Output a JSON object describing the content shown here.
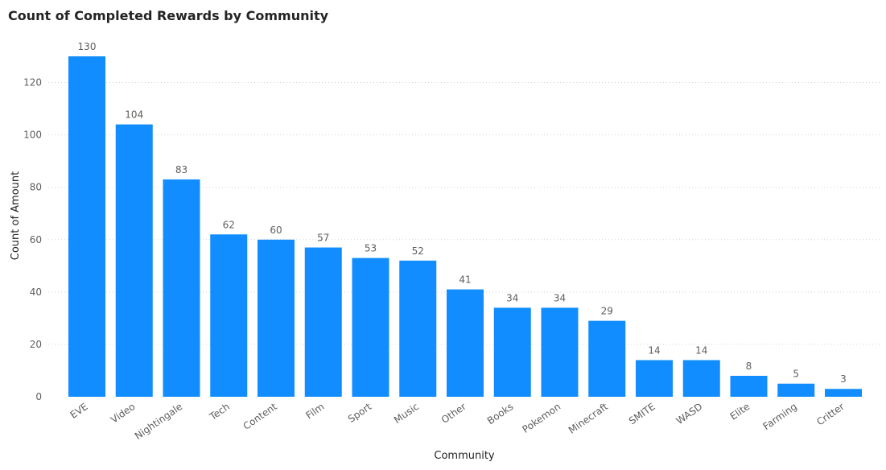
{
  "chart_data": {
    "type": "bar",
    "title": "Count of Completed Rewards by Community",
    "xlabel": "Community",
    "ylabel": "Count of Amount",
    "categories": [
      "EVE",
      "Video",
      "Nightingale",
      "Tech",
      "Content",
      "Film",
      "Sport",
      "Music",
      "Other",
      "Books",
      "Pokemon",
      "Minecraft",
      "SMITE",
      "WASD",
      "Elite",
      "Farming",
      "Critter"
    ],
    "values": [
      130,
      104,
      83,
      62,
      60,
      57,
      53,
      52,
      41,
      34,
      34,
      29,
      14,
      14,
      8,
      5,
      3
    ],
    "ylim": [
      0,
      130
    ],
    "yticks": [
      0,
      20,
      40,
      60,
      80,
      100,
      120
    ],
    "grid": true,
    "data_labels": true,
    "bar_color": "#118DFF"
  }
}
